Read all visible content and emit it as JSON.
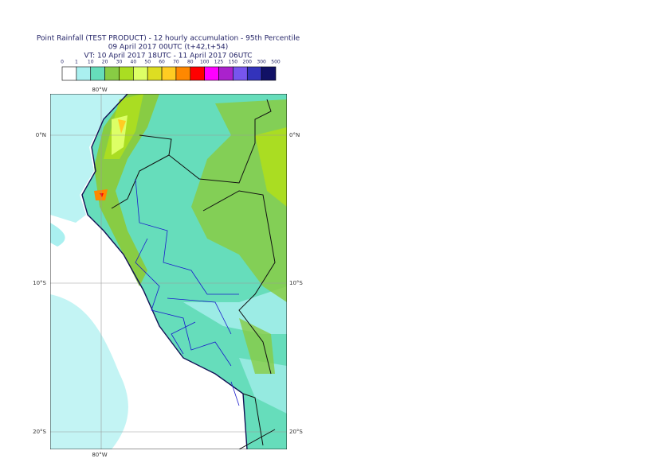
{
  "header": {
    "title": "Point Rainfall (TEST PRODUCT) - 12 hourly accumulation - 95th Percentile",
    "line2": "09 April 2017 00UTC (t+42,t+54)",
    "line3": "VT: 10 April 2017 18UTC - 11 April 2017 06UTC"
  },
  "legend": {
    "labels": [
      "0",
      "1",
      "10",
      "20",
      "30",
      "40",
      "50",
      "60",
      "70",
      "80",
      "100",
      "125",
      "150",
      "200",
      "300",
      "500"
    ],
    "colors": [
      "#ffffff",
      "#aaf0f0",
      "#66ddbb",
      "#88cc44",
      "#aadd22",
      "#ddff66",
      "#dddd22",
      "#ffcc22",
      "#ff8800",
      "#ff0000",
      "#ff00ff",
      "#aa22cc",
      "#7755ee",
      "#3333bb",
      "#111166"
    ]
  },
  "map": {
    "lon_labels": [
      "80°W",
      "80°W"
    ],
    "lat_labels": [
      "0°N",
      "10°S",
      "20°S"
    ]
  }
}
